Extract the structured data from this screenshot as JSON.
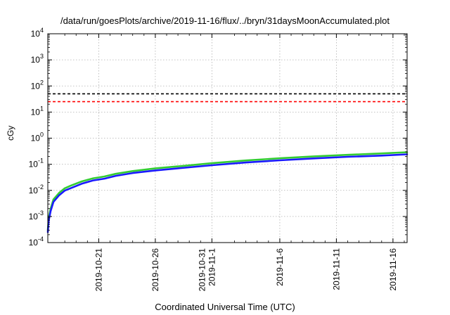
{
  "chart_data": {
    "type": "line",
    "title": "/data/run/goesPlots/archive/2019-11-16/flux/../bryn/31daysMoonAccumulated.plot",
    "xlabel": "Coordinated Universal Time (UTC)",
    "ylabel": "cGy",
    "yscale": "log",
    "ylim": [
      0.0001,
      10000
    ],
    "xlim": [
      "2019-10-16T12:00",
      "2019-11-17T06:00"
    ],
    "grid": true,
    "y_ticks": [
      {
        "value": 0.0001,
        "base": "10",
        "exp": "-4"
      },
      {
        "value": 0.001,
        "base": "10",
        "exp": "-3"
      },
      {
        "value": 0.01,
        "base": "10",
        "exp": "-2"
      },
      {
        "value": 0.1,
        "base": "10",
        "exp": "-1"
      },
      {
        "value": 1,
        "base": "10",
        "exp": "0"
      },
      {
        "value": 10,
        "base": "10",
        "exp": "1"
      },
      {
        "value": 100,
        "base": "10",
        "exp": "2"
      },
      {
        "value": 1000,
        "base": "10",
        "exp": "3"
      },
      {
        "value": 10000,
        "base": "10",
        "exp": "4"
      }
    ],
    "x_ticks": [
      {
        "date": "2019-10-21",
        "lines": [
          "2019-10-21"
        ]
      },
      {
        "date": "2019-10-26",
        "lines": [
          "2019-10-26"
        ]
      },
      {
        "date": "2019-10-31",
        "lines": [
          "2019-10-31",
          "2019-11-1"
        ]
      },
      {
        "date": "2019-11-06",
        "lines": [
          "2019-11-6"
        ]
      },
      {
        "date": "2019-11-11",
        "lines": [
          "2019-11-11"
        ]
      },
      {
        "date": "2019-11-16",
        "lines": [
          "2019-11-16"
        ]
      }
    ],
    "x_minor_dates": [
      "2019-10-18",
      "2019-10-19",
      "2019-10-20",
      "2019-10-22",
      "2019-10-23",
      "2019-10-24",
      "2019-10-25",
      "2019-10-27",
      "2019-10-28",
      "2019-10-29",
      "2019-10-30",
      "2019-11-02",
      "2019-11-03",
      "2019-11-04",
      "2019-11-05",
      "2019-11-07",
      "2019-11-08",
      "2019-11-09",
      "2019-11-10",
      "2019-11-12",
      "2019-11-13",
      "2019-11-14",
      "2019-11-15",
      "2019-11-17"
    ],
    "reference_lines": [
      {
        "value": 50,
        "color": "#000000",
        "style": "dashed"
      },
      {
        "value": 25,
        "color": "#ff0000",
        "style": "dashed"
      }
    ],
    "series": [
      {
        "color": "#33cc33",
        "x": [
          "2019-10-16T12:00",
          "2019-10-16T14:00",
          "2019-10-16T18:00",
          "2019-10-17T00:00",
          "2019-10-17T12:00",
          "2019-10-18T00:00",
          "2019-10-18T12:00",
          "2019-10-19T12:00",
          "2019-10-20T12:00",
          "2019-10-21T12:00",
          "2019-10-22T12:00",
          "2019-10-24T00:00",
          "2019-10-26T00:00",
          "2019-10-28T00:00",
          "2019-10-31T00:00",
          "2019-11-03T00:00",
          "2019-11-06T00:00",
          "2019-11-09T00:00",
          "2019-11-12T00:00",
          "2019-11-15T00:00",
          "2019-11-17T06:00"
        ],
        "y": [
          0.0003,
          0.0009,
          0.002,
          0.0045,
          0.008,
          0.012,
          0.015,
          0.022,
          0.029,
          0.034,
          0.043,
          0.055,
          0.07,
          0.083,
          0.11,
          0.14,
          0.17,
          0.2,
          0.23,
          0.26,
          0.29
        ]
      },
      {
        "color": "#1a1aff",
        "x": [
          "2019-10-16T12:00",
          "2019-10-16T14:00",
          "2019-10-16T18:00",
          "2019-10-17T00:00",
          "2019-10-17T12:00",
          "2019-10-18T00:00",
          "2019-10-18T12:00",
          "2019-10-19T12:00",
          "2019-10-20T12:00",
          "2019-10-21T12:00",
          "2019-10-22T12:00",
          "2019-10-24T00:00",
          "2019-10-26T00:00",
          "2019-10-28T00:00",
          "2019-10-31T00:00",
          "2019-11-03T00:00",
          "2019-11-06T00:00",
          "2019-11-09T00:00",
          "2019-11-12T00:00",
          "2019-11-15T00:00",
          "2019-11-17T06:00"
        ],
        "y": [
          0.00025,
          0.0007,
          0.0016,
          0.0036,
          0.0065,
          0.0098,
          0.012,
          0.018,
          0.024,
          0.028,
          0.036,
          0.046,
          0.058,
          0.07,
          0.092,
          0.117,
          0.142,
          0.168,
          0.193,
          0.215,
          0.24
        ]
      }
    ]
  }
}
